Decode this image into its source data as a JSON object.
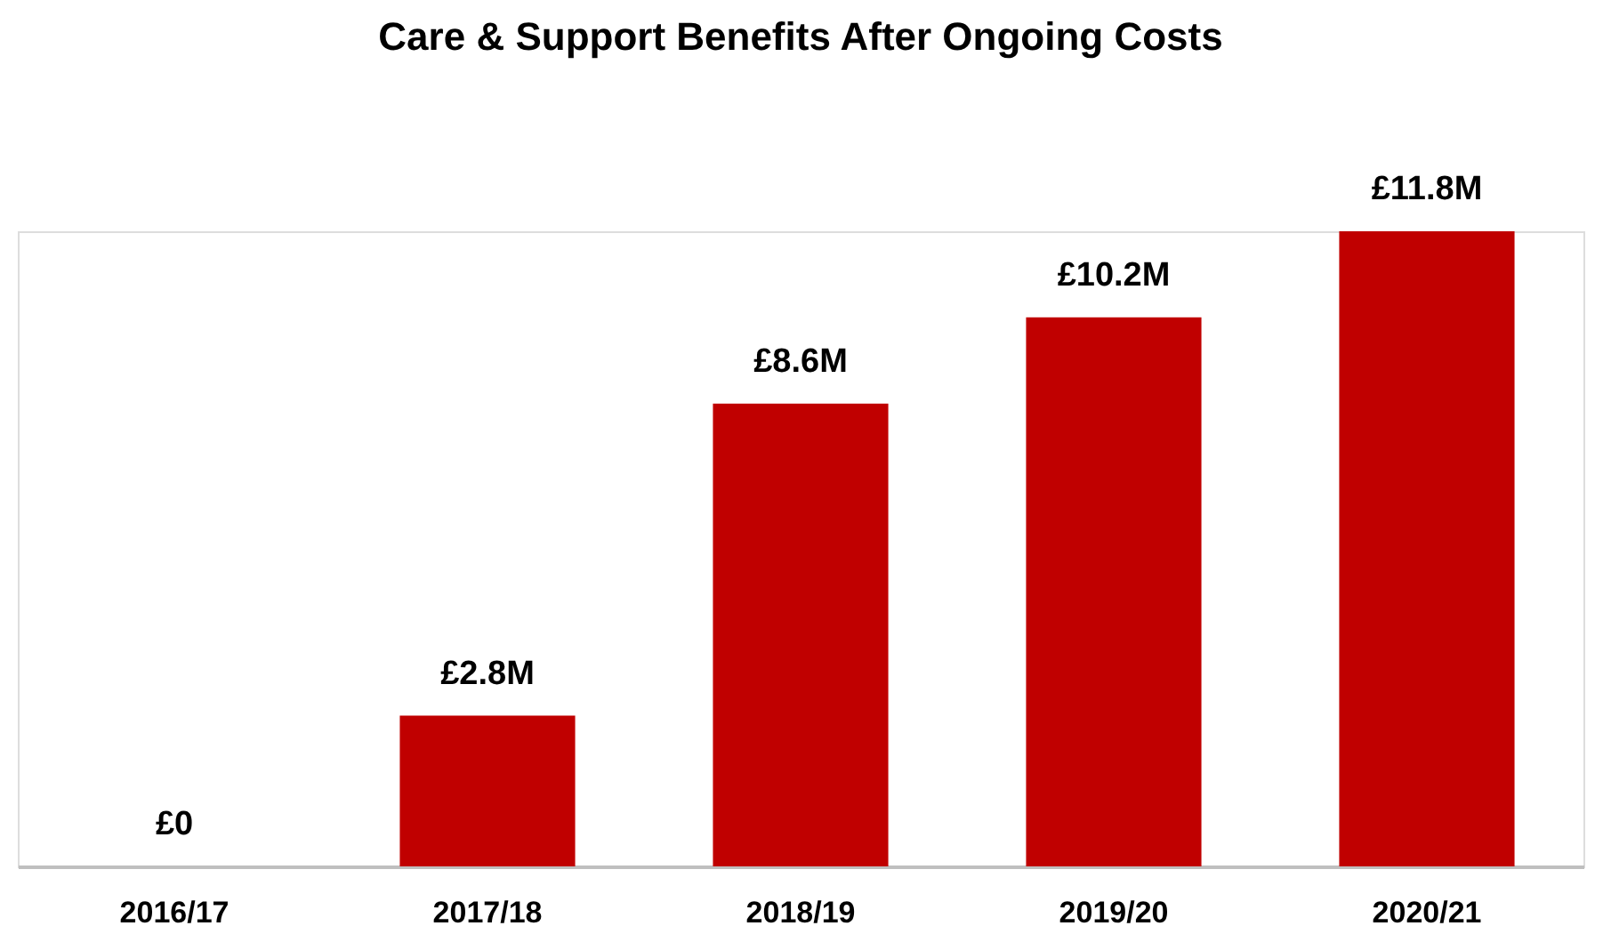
{
  "chart_data": {
    "type": "bar",
    "title": "Care & Support Benefits After Ongoing Costs",
    "categories": [
      "2016/17",
      "2017/18",
      "2018/19",
      "2019/20",
      "2020/21"
    ],
    "values": [
      0,
      2.8,
      8.6,
      10.2,
      11.8
    ],
    "value_labels": [
      "£0",
      "£2.8M",
      "£8.6M",
      "£10.2M",
      "£11.8M"
    ],
    "color": "#c00000",
    "grid": false
  }
}
